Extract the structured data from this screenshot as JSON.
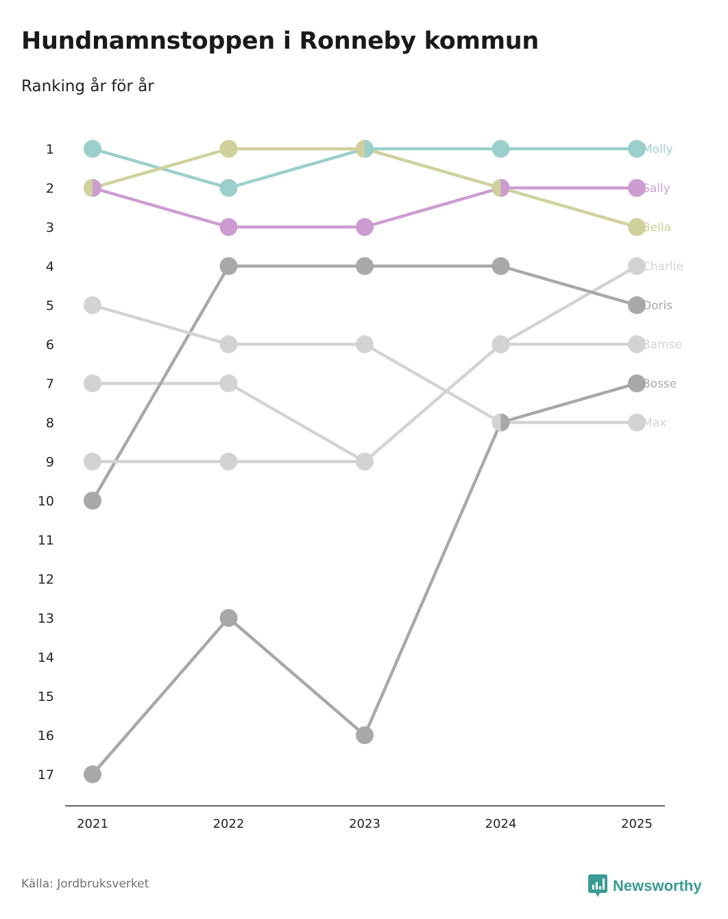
{
  "title": "Hundnamnstoppen i Ronneby kommun",
  "subtitle": "Ranking år för år",
  "source": "Källa: Jordbruksverket",
  "brand": "Newsworthy",
  "colors": {
    "Molly": "#9bcfcc",
    "Sally": "#cc9cd0",
    "Bella": "#cfd09c",
    "light": "#d3d3d3",
    "dark": "#a8a8a8",
    "axis": "#333333",
    "brand": "#3a9a94"
  },
  "chart_data": {
    "type": "line",
    "title": "Hundnamnstoppen i Ronneby kommun",
    "subtitle": "Ranking år för år",
    "xlabel": "",
    "ylabel": "",
    "categories": [
      "2021",
      "2022",
      "2023",
      "2024",
      "2025"
    ],
    "y_ticks": [
      1,
      2,
      3,
      4,
      5,
      6,
      7,
      8,
      9,
      10,
      11,
      12,
      13,
      14,
      15,
      16,
      17
    ],
    "ylim": [
      1,
      17
    ],
    "y_inverted": true,
    "grid": false,
    "series": [
      {
        "name": "Molly",
        "color": "#9bcfcc",
        "values": [
          1,
          2,
          1,
          1,
          1
        ]
      },
      {
        "name": "Sally",
        "color": "#cc9cd0",
        "values": [
          2,
          3,
          3,
          2,
          2
        ]
      },
      {
        "name": "Bella",
        "color": "#cfd09c",
        "values": [
          2,
          1,
          1,
          2,
          3
        ]
      },
      {
        "name": "Charlie",
        "color": "#d3d3d3",
        "values": [
          7,
          7,
          9,
          6,
          4
        ]
      },
      {
        "name": "Doris",
        "color": "#a8a8a8",
        "values": [
          10,
          4,
          4,
          4,
          5
        ]
      },
      {
        "name": "Bamse",
        "color": "#d3d3d3",
        "values": [
          9,
          9,
          9,
          6,
          6
        ]
      },
      {
        "name": "Bosse",
        "color": "#a8a8a8",
        "values": [
          17,
          13,
          16,
          8,
          7
        ]
      },
      {
        "name": "Max",
        "color": "#d3d3d3",
        "values": [
          5,
          6,
          6,
          8,
          8
        ]
      }
    ]
  }
}
